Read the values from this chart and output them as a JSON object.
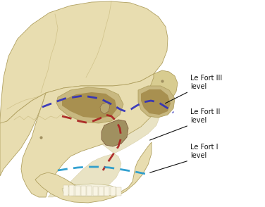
{
  "bg_color": "#ffffff",
  "skull_fill": "#e8ddb0",
  "skull_mid": "#d4c88a",
  "skull_dark": "#b8a870",
  "skull_edge": "#b0a060",
  "orbit_fill": "#c8b880",
  "orbit_dark": "#a89050",
  "nasal_fill": "#a09060",
  "temporal_fill": "#d0c080",
  "zygo_fill": "#d8cc90",
  "teeth_color": "#f5f2e0",
  "suture_color": "#c0b070",
  "labels": {
    "lefort3": "Le Fort III\nlevel",
    "lefort2": "Le Fort II\nlevel",
    "lefort1": "Le Fort I\nlevel"
  },
  "line_colors": {
    "lefort3": "#3030bb",
    "lefort2": "#aa2020",
    "lefort1": "#2299cc"
  },
  "annotation_color": "#111111",
  "label_fontsize": 7.0
}
